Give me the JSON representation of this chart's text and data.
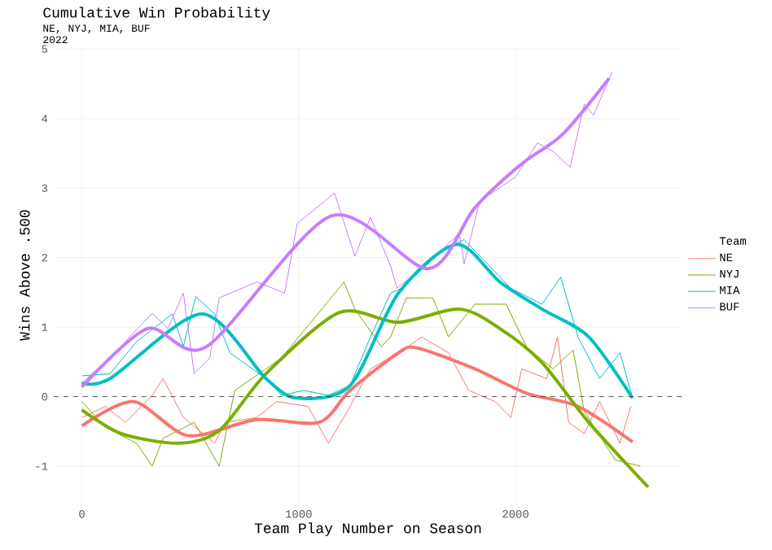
{
  "chart_data": {
    "type": "line",
    "title": "Cumulative Win Probability",
    "subtitle": "NE, NYJ, MIA, BUF",
    "annotations": [
      "2022"
    ],
    "xlabel": "Team Play Number on Season",
    "ylabel": "Wins Above .500",
    "legend_title": "Team",
    "xlim": [
      -130,
      2770
    ],
    "ylim": [
      -1.55,
      5.05
    ],
    "xticks": [
      0,
      1000,
      2000
    ],
    "yticks": [
      -1,
      0,
      1,
      2,
      3,
      4,
      5
    ],
    "grid": true,
    "legend": "right",
    "marker": "none",
    "line_style": "solid",
    "ref_lines": [
      {
        "axis": "y",
        "value": 0,
        "line_style": "dashed",
        "color": "#333333"
      }
    ],
    "series": [
      {
        "name": "NE",
        "color": "#f8766d",
        "x": [
          0,
          108,
          201,
          324,
          374,
          468,
          612,
          662,
          806,
          899,
          1043,
          1137,
          1237,
          1331,
          1460,
          1568,
          1691,
          1784,
          1906,
          1978,
          2029,
          2144,
          2194,
          2245,
          2317,
          2388,
          2482,
          2532
        ],
        "values": [
          -0.3,
          -0.14,
          -0.37,
          0.02,
          0.26,
          -0.3,
          -0.67,
          -0.37,
          -0.3,
          -0.07,
          -0.14,
          -0.67,
          -0.14,
          0.4,
          0.63,
          0.86,
          0.63,
          0.09,
          -0.07,
          -0.3,
          0.4,
          0.26,
          0.86,
          -0.37,
          -0.53,
          -0.07,
          -0.67,
          -0.14
        ]
      },
      {
        "name": "NYJ",
        "color": "#7cae00",
        "x": [
          0,
          108,
          252,
          324,
          374,
          518,
          633,
          705,
          849,
          921,
          1043,
          1209,
          1259,
          1381,
          1424,
          1496,
          1619,
          1691,
          1813,
          1957,
          2050,
          2173,
          2266,
          2317,
          2460,
          2576
        ],
        "values": [
          -0.07,
          -0.44,
          -0.67,
          -1.0,
          -0.6,
          -0.37,
          -1.0,
          0.09,
          0.4,
          0.56,
          1.02,
          1.65,
          1.26,
          0.72,
          0.86,
          1.42,
          1.42,
          0.86,
          1.33,
          1.33,
          0.72,
          0.4,
          0.67,
          -0.21,
          -0.91,
          -1.0
        ]
      },
      {
        "name": "MIA",
        "color": "#00bfc4",
        "x": [
          0,
          130,
          252,
          417,
          468,
          525,
          612,
          683,
          849,
          921,
          1022,
          1137,
          1237,
          1331,
          1424,
          1475,
          1669,
          1763,
          1978,
          2122,
          2209,
          2288,
          2388,
          2482,
          2540
        ],
        "values": [
          0.3,
          0.33,
          0.79,
          1.19,
          0.72,
          1.44,
          1.19,
          0.63,
          0.26,
          0.02,
          0.09,
          0.02,
          0.16,
          0.86,
          1.49,
          1.56,
          2.12,
          2.26,
          1.56,
          1.33,
          1.72,
          0.86,
          0.26,
          0.63,
          -0.02
        ]
      },
      {
        "name": "BUF",
        "color": "#c77cff",
        "x": [
          0,
          130,
          324,
          396,
          468,
          518,
          590,
          633,
          806,
          935,
          993,
          1165,
          1259,
          1331,
          1424,
          1453,
          1568,
          1741,
          1763,
          1835,
          2000,
          2101,
          2173,
          2252,
          2317,
          2360,
          2446
        ],
        "values": [
          0.2,
          0.56,
          1.2,
          0.98,
          1.49,
          0.33,
          0.56,
          1.42,
          1.65,
          1.49,
          2.49,
          2.93,
          2.02,
          2.58,
          1.88,
          1.56,
          1.84,
          2.35,
          1.91,
          2.81,
          3.16,
          3.65,
          3.53,
          3.3,
          4.21,
          4.05,
          4.67
        ]
      },
      {
        "color": "#f8766d",
        "x": [
          0,
          237,
          489,
          806,
          1094,
          1237,
          1460,
          1547,
          1813,
          2050,
          2288,
          2540
        ],
        "values": [
          -0.42,
          -0.07,
          -0.56,
          -0.33,
          -0.37,
          0.09,
          0.63,
          0.7,
          0.4,
          0.05,
          -0.14,
          -0.65
        ]
      },
      {
        "color": "#7cae00",
        "x": [
          0,
          180,
          446,
          633,
          849,
          1187,
          1460,
          1741,
          1928,
          2122,
          2338,
          2612
        ],
        "values": [
          -0.19,
          -0.53,
          -0.67,
          -0.49,
          0.33,
          1.21,
          1.07,
          1.26,
          0.98,
          0.49,
          -0.37,
          -1.3
        ]
      },
      {
        "color": "#00bfc4",
        "x": [
          0,
          130,
          554,
          849,
          993,
          1237,
          1460,
          1727,
          1928,
          2122,
          2338,
          2540
        ],
        "values": [
          0.2,
          0.26,
          1.19,
          0.26,
          -0.02,
          0.16,
          1.49,
          2.19,
          1.65,
          1.26,
          0.86,
          -0.02
        ]
      },
      {
        "color": "#c77cff",
        "x": [
          0,
          302,
          575,
          1150,
          1597,
          1813,
          2029,
          2216,
          2432
        ],
        "values": [
          0.14,
          0.98,
          0.72,
          2.6,
          1.84,
          2.72,
          3.35,
          3.77,
          4.58
        ]
      }
    ]
  }
}
